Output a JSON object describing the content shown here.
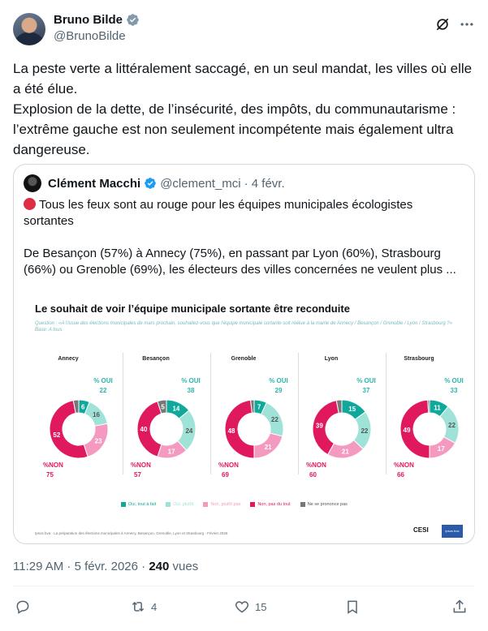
{
  "author": {
    "name": "Bruno Bilde",
    "handle": "@BrunoBilde"
  },
  "tweet": {
    "text": "La peste verte a littéralement saccagé, en un seul mandat, les villes où elle a été élue.\nExplosion de la dette, de l’insécurité, des impôts, du communautarisme : l’extrême gauche est non seulement incompétente mais également ultra dangereuse."
  },
  "quote": {
    "name": "Clément Macchi",
    "handle": "@clement_mci",
    "date": "· 4 févr.",
    "text_line1": "Tous les feux sont au rouge pour les équipes municipales écologistes sortantes",
    "text_line2": "De Besançon (57%) à Annecy (75%), en passant par Lyon (60%), Strasbourg (66%) ou Grenoble (69%), les électeurs des villes concernées ne veulent plus ..."
  },
  "chart_data": {
    "type": "pie",
    "title": "Le souhait de voir l’équipe municipale sortante être reconduite",
    "question": "Question : «A l'issue des élections municipales de mars prochain, souhaitez-vous que l'équipe municipale sortante soit réélue à la mairie de Annecy / Besançon / Grenoble / Lyon / Strasbourg ?» Base: A tous",
    "categories": [
      "Oui, tout à fait",
      "Oui, plutôt",
      "Non, plutôt pas",
      "Non, pas du tout",
      "Ne se prononce pas"
    ],
    "colors": [
      "#0fa89a",
      "#9fe3d8",
      "#f49ac1",
      "#e0195f",
      "#777777"
    ],
    "oui_label": "% OUI",
    "non_label": "%NON",
    "cities": [
      {
        "name": "Annecy",
        "values": [
          6,
          16,
          23,
          52,
          3
        ],
        "oui": 22,
        "non": 75
      },
      {
        "name": "Besançon",
        "values": [
          14,
          24,
          17,
          40,
          5
        ],
        "oui": 38,
        "non": 57
      },
      {
        "name": "Grenoble",
        "values": [
          7,
          22,
          21,
          48,
          2
        ],
        "oui": 29,
        "non": 69
      },
      {
        "name": "Lyon",
        "values": [
          15,
          22,
          21,
          39,
          3
        ],
        "oui": 37,
        "non": 60
      },
      {
        "name": "Strasbourg",
        "values": [
          11,
          22,
          17,
          49,
          1
        ],
        "oui": 33,
        "non": 66
      }
    ],
    "footnote": "Ipsos bva - La préparation des élections municipales à Annecy, Besançon, Grenoble, Lyon et Strasbourg - Février 2026",
    "logos": [
      "CESI",
      "ipsos bva"
    ]
  },
  "meta": {
    "time": "11:29 AM · 5 févr. 2026 · ",
    "views": "240",
    "views_label": " vues"
  },
  "actions": {
    "replies": "",
    "reposts": "4",
    "likes": "15"
  }
}
